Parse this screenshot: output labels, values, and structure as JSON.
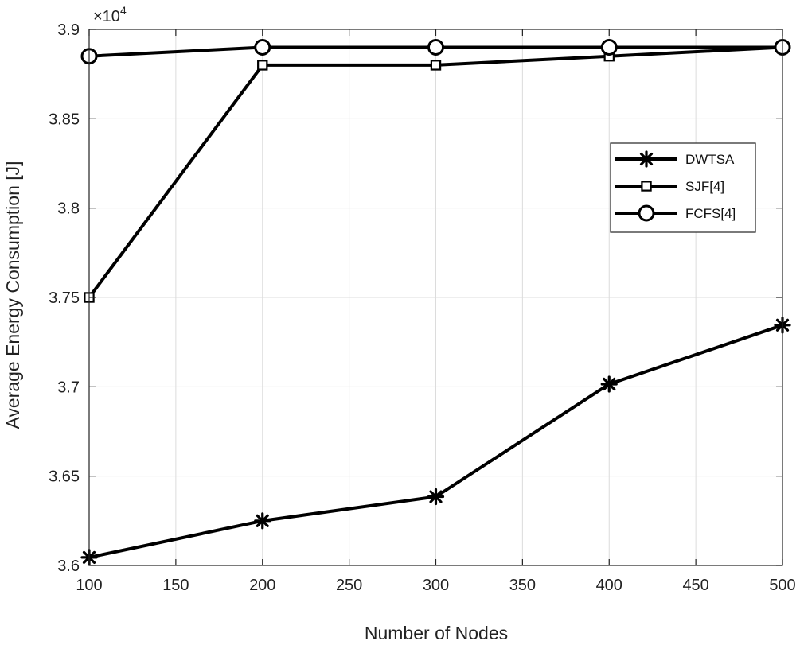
{
  "chart_data": {
    "type": "line",
    "title": "",
    "xlabel": "Number of Nodes",
    "ylabel": "Average Energy Consumption [J]",
    "x": [
      100,
      200,
      300,
      400,
      500
    ],
    "xlim": [
      100,
      500
    ],
    "ylim": [
      36000,
      39000
    ],
    "x_ticks": [
      100,
      150,
      200,
      250,
      300,
      350,
      400,
      450,
      500
    ],
    "y_ticks": [
      36000,
      36500,
      37000,
      37500,
      38000,
      38500,
      39000
    ],
    "x_tick_labels": [
      "100",
      "150",
      "200",
      "250",
      "300",
      "350",
      "400",
      "450",
      "500"
    ],
    "y_tick_labels": [
      "3.6",
      "3.65",
      "3.7",
      "3.75",
      "3.8",
      "3.85",
      "3.9"
    ],
    "y_exponent_base": "×10",
    "y_exponent_power": "4",
    "grid": true,
    "legend_position": "right",
    "series": [
      {
        "name": "DWTSA",
        "marker": "asterisk",
        "values": [
          36045,
          36250,
          36385,
          37015,
          37345
        ]
      },
      {
        "name": "SJF[4]",
        "marker": "square",
        "values": [
          37500,
          38800,
          38800,
          38850,
          38900
        ]
      },
      {
        "name": "FCFS[4]",
        "marker": "circle",
        "values": [
          38850,
          38900,
          38900,
          38900,
          38900
        ]
      }
    ],
    "colors": {
      "line": "#000000",
      "grid": "#dcdcdc",
      "axis": "#222222",
      "background": "#ffffff"
    }
  }
}
